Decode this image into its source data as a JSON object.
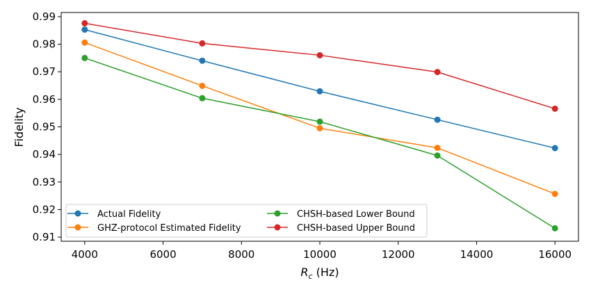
{
  "chart_data": {
    "type": "line",
    "xlabel_main": "R",
    "xlabel_sub": "c",
    "xlabel_unit": " (Hz)",
    "ylabel": "Fidelity",
    "x": [
      4000,
      7000,
      10000,
      13000,
      16000
    ],
    "xlim": [
      3400,
      16600
    ],
    "ylim": [
      0.9085,
      0.9915
    ],
    "xticks": [
      4000,
      6000,
      8000,
      10000,
      12000,
      14000,
      16000
    ],
    "yticks": [
      0.91,
      0.92,
      0.93,
      0.94,
      0.95,
      0.96,
      0.97,
      0.98,
      0.99
    ],
    "ytick_labels": [
      "0.91",
      "0.92",
      "0.93",
      "0.94",
      "0.95",
      "0.96",
      "0.97",
      "0.98",
      "0.99"
    ],
    "grid": false,
    "legend_placement": "lower-left, two columns",
    "series": [
      {
        "name": "Actual Fidelity",
        "color": "#1f77b4",
        "values": [
          0.9853,
          0.974,
          0.9629,
          0.9526,
          0.9423
        ]
      },
      {
        "name": "GHZ-protocol Estimated Fidelity",
        "color": "#ff7f0e",
        "values": [
          0.9806,
          0.9649,
          0.9495,
          0.9424,
          0.9257
        ]
      },
      {
        "name": "CHSH-based Lower Bound",
        "color": "#2ca02c",
        "values": [
          0.975,
          0.9604,
          0.9519,
          0.9396,
          0.9132
        ]
      },
      {
        "name": "CHSH-based Upper Bound",
        "color": "#d62728",
        "values": [
          0.9876,
          0.9803,
          0.976,
          0.9699,
          0.9566
        ]
      }
    ]
  }
}
